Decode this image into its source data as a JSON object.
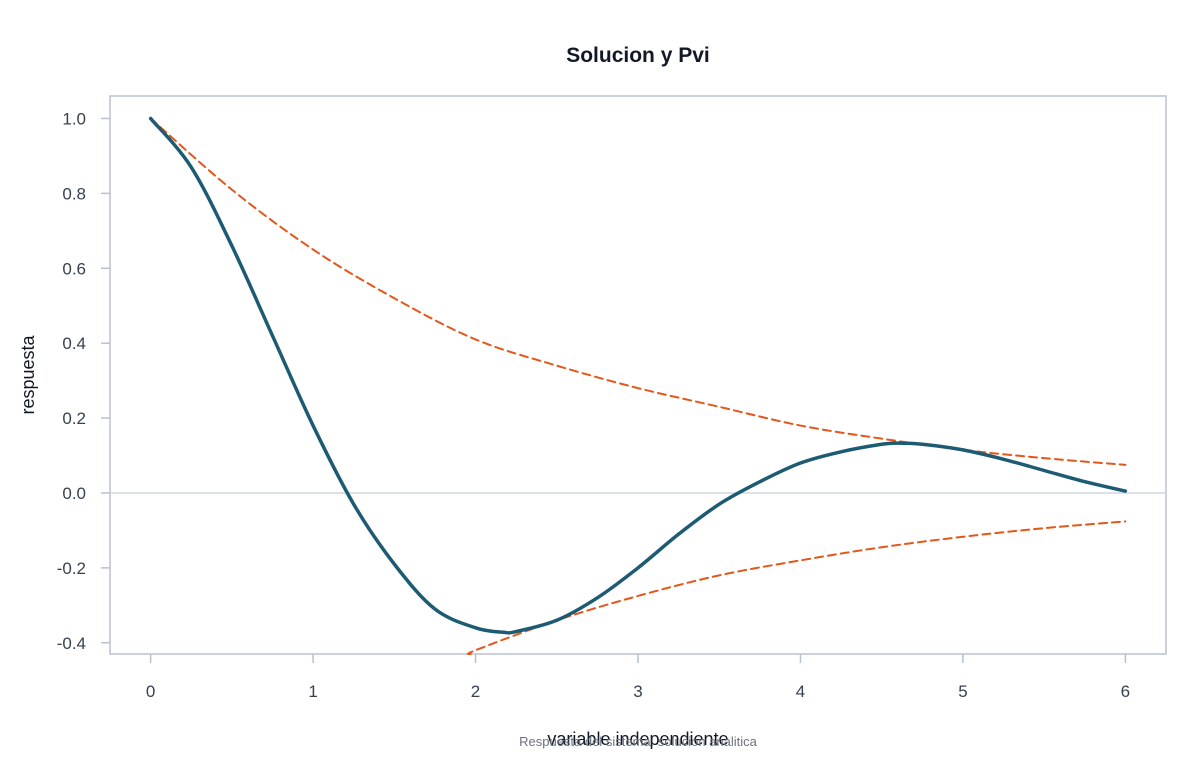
{
  "chart_data": {
    "type": "line",
    "title": "Solucion y Pvi",
    "xlabel": "variable independiente",
    "ylabel": "respuesta",
    "footnote": "Respuesta del sistema: solucion analitica",
    "xlim": [
      -0.25,
      6.25
    ],
    "ylim": [
      -0.43,
      1.06
    ],
    "x_ticks": [
      0,
      1,
      2,
      3,
      4,
      5,
      6
    ],
    "y_ticks": [
      1.0,
      0.8,
      0.6,
      0.4,
      0.2,
      0.0,
      -0.2,
      -0.4
    ],
    "zero_line": true,
    "grid": false,
    "legend": "none",
    "colors": {
      "solution": "#1d5b73",
      "envelope": "#e3571a",
      "frame": "#b8c0d0",
      "zero_line": "#cfd5e2"
    },
    "series": [
      {
        "style": "solid",
        "x": [
          0.0,
          0.25,
          0.5,
          0.75,
          1.0,
          1.25,
          1.5,
          1.75,
          2.0,
          2.17,
          2.25,
          2.5,
          2.75,
          3.0,
          3.25,
          3.5,
          3.75,
          4.0,
          4.25,
          4.5,
          4.6,
          4.75,
          5.0,
          5.25,
          5.5,
          5.75,
          6.0
        ],
        "y": [
          1.0,
          0.87,
          0.66,
          0.42,
          0.18,
          -0.03,
          -0.19,
          -0.31,
          -0.36,
          -0.372,
          -0.37,
          -0.34,
          -0.28,
          -0.2,
          -0.11,
          -0.03,
          0.03,
          0.08,
          0.11,
          0.13,
          0.133,
          0.13,
          0.115,
          0.09,
          0.06,
          0.03,
          0.005
        ]
      },
      {
        "style": "dashed",
        "x": [
          0.0,
          0.5,
          1.0,
          1.5,
          2.0,
          2.5,
          3.0,
          3.5,
          4.0,
          4.5,
          5.0,
          5.5,
          6.0
        ],
        "y": [
          1.0,
          0.81,
          0.65,
          0.52,
          0.41,
          0.34,
          0.28,
          0.23,
          0.18,
          0.145,
          0.115,
          0.093,
          0.075
        ]
      },
      {
        "style": "dashed",
        "x": [
          1.97,
          2.0,
          2.5,
          3.0,
          3.5,
          4.0,
          4.5,
          5.0,
          5.5,
          6.0
        ],
        "y": [
          -0.43,
          -0.42,
          -0.34,
          -0.275,
          -0.22,
          -0.18,
          -0.145,
          -0.117,
          -0.094,
          -0.076
        ]
      }
    ]
  }
}
